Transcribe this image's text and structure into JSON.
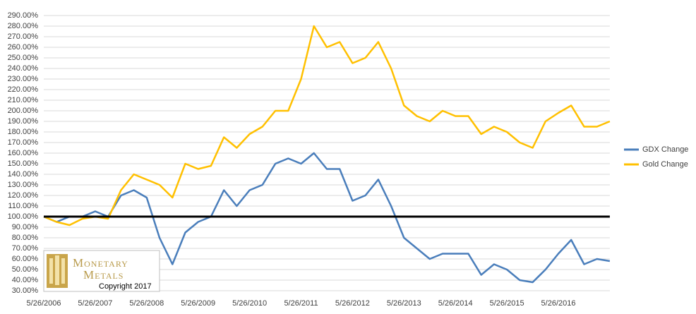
{
  "chart_data": {
    "type": "line",
    "categories": [
      "5/26/2006",
      null,
      null,
      null,
      "5/26/2007",
      null,
      null,
      null,
      "5/26/2008",
      null,
      null,
      null,
      "5/26/2009",
      null,
      null,
      null,
      "5/26/2010",
      null,
      null,
      null,
      "5/26/2011",
      null,
      null,
      null,
      "5/26/2012",
      null,
      null,
      null,
      "5/26/2013",
      null,
      null,
      null,
      "5/26/2014",
      null,
      null,
      null,
      "5/26/2015",
      null,
      null,
      null,
      "5/26/2016",
      null,
      null,
      null,
      null
    ],
    "series": [
      {
        "name": "GDX Change",
        "color": "#4a7ebb",
        "values": [
          100,
          95,
          100,
          100,
          105,
          100,
          120,
          125,
          118,
          80,
          55,
          85,
          95,
          100,
          125,
          110,
          125,
          130,
          150,
          155,
          150,
          160,
          145,
          145,
          115,
          120,
          135,
          110,
          80,
          70,
          60,
          65,
          65,
          65,
          45,
          55,
          50,
          40,
          38,
          50,
          65,
          78,
          55,
          60,
          58
        ]
      },
      {
        "name": "Gold Change",
        "color": "#ffc000",
        "values": [
          100,
          95,
          92,
          98,
          100,
          98,
          125,
          140,
          135,
          130,
          118,
          150,
          145,
          148,
          175,
          165,
          178,
          185,
          200,
          200,
          230,
          280,
          260,
          265,
          245,
          250,
          265,
          240,
          205,
          195,
          190,
          200,
          195,
          195,
          178,
          185,
          180,
          170,
          165,
          190,
          198,
          205,
          185,
          185,
          190
        ]
      }
    ],
    "ylim": [
      30,
      290
    ],
    "yticks": [
      {
        "value": 30,
        "label": "30.00%"
      },
      {
        "value": 40,
        "label": "40.00%"
      },
      {
        "value": 50,
        "label": "50.00%"
      },
      {
        "value": 60,
        "label": "60.00%"
      },
      {
        "value": 70,
        "label": "70.00%"
      },
      {
        "value": 80,
        "label": "80.00%"
      },
      {
        "value": 90,
        "label": "90.00%"
      },
      {
        "value": 100,
        "label": "100.00%"
      },
      {
        "value": 110,
        "label": "110.00%"
      },
      {
        "value": 120,
        "label": "120.00%"
      },
      {
        "value": 130,
        "label": "130.00%"
      },
      {
        "value": 140,
        "label": "140.00%"
      },
      {
        "value": 150,
        "label": "150.00%"
      },
      {
        "value": 160,
        "label": "160.00%"
      },
      {
        "value": 170,
        "label": "170.00%"
      },
      {
        "value": 180,
        "label": "180.00%"
      },
      {
        "value": 190,
        "label": "190.00%"
      },
      {
        "value": 200,
        "label": "200.00%"
      },
      {
        "value": 210,
        "label": "210.00%"
      },
      {
        "value": 220,
        "label": "220.00%"
      },
      {
        "value": 230,
        "label": "230.00%"
      },
      {
        "value": 240,
        "label": "240.00%"
      },
      {
        "value": 250,
        "label": "250.00%"
      },
      {
        "value": 260,
        "label": "260.00%"
      },
      {
        "value": 270,
        "label": "270.00%"
      },
      {
        "value": 280,
        "label": "280.00%"
      },
      {
        "value": 290,
        "label": "290.00%"
      }
    ],
    "grid": true,
    "reference_line": 100,
    "legend": "right",
    "watermark": {
      "line1": "Monetary",
      "line2": "Metals",
      "copyright": "Copyright 2017"
    }
  }
}
